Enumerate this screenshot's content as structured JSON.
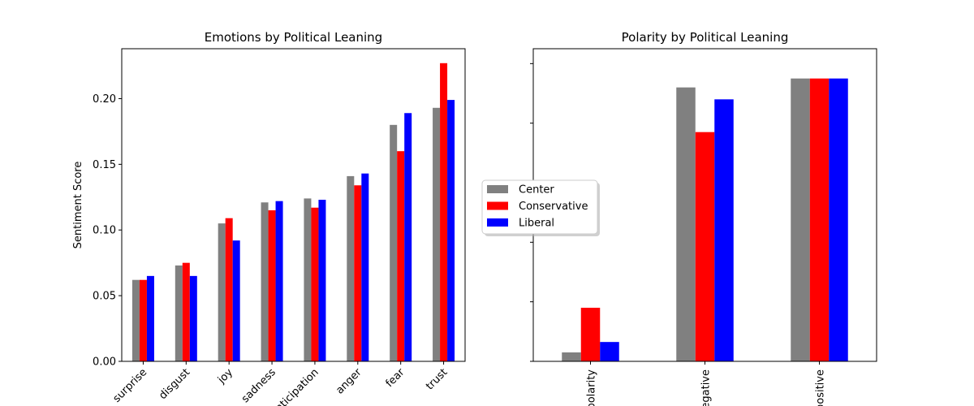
{
  "chart_data": [
    {
      "type": "bar",
      "title": "Emotions by Political Leaning",
      "xlabel": "",
      "ylabel": "Sentiment Score",
      "categories": [
        "surprise",
        "disgust",
        "joy",
        "sadness",
        "anticipation",
        "anger",
        "fear",
        "trust"
      ],
      "ylim": [
        0,
        0.238
      ],
      "yticks": [
        "0.00",
        "0.05",
        "0.10",
        "0.15",
        "0.20"
      ],
      "series": [
        {
          "name": "Center",
          "color": "#808080",
          "values": [
            0.062,
            0.073,
            0.105,
            0.121,
            0.124,
            0.141,
            0.18,
            0.193
          ]
        },
        {
          "name": "Conservative",
          "color": "#ff0000",
          "values": [
            0.062,
            0.075,
            0.109,
            0.115,
            0.117,
            0.134,
            0.16,
            0.227
          ]
        },
        {
          "name": "Liberal",
          "color": "#0000ff",
          "values": [
            0.065,
            0.065,
            0.092,
            0.122,
            0.123,
            0.143,
            0.189,
            0.199
          ]
        }
      ]
    },
    {
      "type": "bar",
      "title": "Polarity by Political Leaning",
      "xlabel": "",
      "ylabel": "",
      "categories": [
        "polarity",
        "negative",
        "positive"
      ],
      "ylim": [
        0,
        1.05
      ],
      "yticks": [
        "",
        "",
        "",
        "",
        "",
        ""
      ],
      "series": [
        {
          "name": "Center",
          "color": "#808080",
          "values": [
            0.03,
            0.92,
            0.95
          ]
        },
        {
          "name": "Conservative",
          "color": "#ff0000",
          "values": [
            0.18,
            0.77,
            0.95
          ]
        },
        {
          "name": "Liberal",
          "color": "#0000ff",
          "values": [
            0.065,
            0.88,
            0.95
          ]
        }
      ]
    }
  ],
  "legend": {
    "placement": "center",
    "entries": [
      {
        "name": "Center",
        "color": "#808080"
      },
      {
        "name": "Conservative",
        "color": "#ff0000"
      },
      {
        "name": "Liberal",
        "color": "#0000ff"
      }
    ]
  }
}
